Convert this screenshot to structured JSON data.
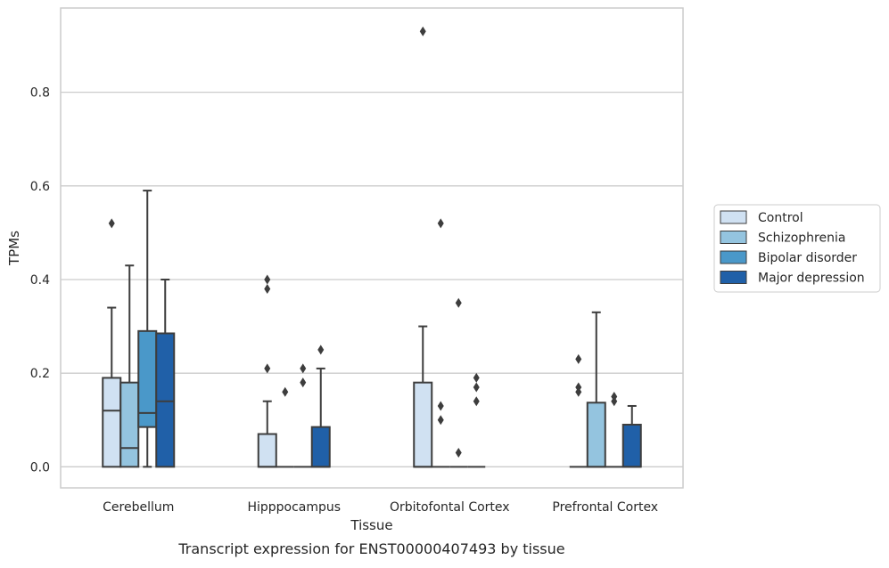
{
  "caption": "Transcript expression for ENST00000407493 by tissue",
  "chart_data": {
    "type": "box",
    "xlabel": "Tissue",
    "ylabel": "TPMs",
    "ylim": [
      -0.045,
      0.98
    ],
    "yticks": [
      0.0,
      0.2,
      0.4,
      0.6,
      0.8
    ],
    "ytick_labels": [
      "0.0",
      "0.2",
      "0.4",
      "0.6",
      "0.8"
    ],
    "grid": "horizontal",
    "legend_position": "right",
    "categories": [
      "Cerebellum",
      "Hipppocampus",
      "Orbitofontal Cortex",
      "Prefrontal Cortex"
    ],
    "groups": [
      {
        "name": "Control",
        "color": "#d0e1f2"
      },
      {
        "name": "Schizophrenia",
        "color": "#94c4df"
      },
      {
        "name": "Bipolar disorder",
        "color": "#4a98c9"
      },
      {
        "name": "Major depression",
        "color": "#2060a8"
      }
    ],
    "boxes": [
      [
        {
          "q1": 0.0,
          "median": 0.12,
          "q3": 0.19,
          "whisker_low": 0.0,
          "whisker_high": 0.34,
          "outliers": [
            0.52
          ]
        },
        {
          "q1": 0.0,
          "median": 0.04,
          "q3": 0.18,
          "whisker_low": 0.0,
          "whisker_high": 0.43,
          "outliers": []
        },
        {
          "q1": 0.085,
          "median": 0.115,
          "q3": 0.29,
          "whisker_low": 0.0,
          "whisker_high": 0.59,
          "outliers": []
        },
        {
          "q1": 0.0,
          "median": 0.14,
          "q3": 0.285,
          "whisker_low": 0.0,
          "whisker_high": 0.4,
          "outliers": []
        }
      ],
      [
        {
          "q1": 0.0,
          "median": 0.0,
          "q3": 0.07,
          "whisker_low": 0.0,
          "whisker_high": 0.14,
          "outliers": [
            0.21,
            0.38,
            0.4
          ]
        },
        {
          "q1": 0.0,
          "median": 0.0,
          "q3": 0.0,
          "whisker_low": 0.0,
          "whisker_high": 0.0,
          "outliers": [
            0.16
          ]
        },
        {
          "q1": 0.0,
          "median": 0.0,
          "q3": 0.0,
          "whisker_low": 0.0,
          "whisker_high": 0.0,
          "outliers": [
            0.18,
            0.21
          ]
        },
        {
          "q1": 0.0,
          "median": 0.0,
          "q3": 0.085,
          "whisker_low": 0.0,
          "whisker_high": 0.21,
          "outliers": [
            0.25
          ]
        }
      ],
      [
        {
          "q1": 0.0,
          "median": 0.0,
          "q3": 0.18,
          "whisker_low": 0.0,
          "whisker_high": 0.3,
          "outliers": [
            0.93
          ]
        },
        {
          "q1": 0.0,
          "median": 0.0,
          "q3": 0.0,
          "whisker_low": 0.0,
          "whisker_high": 0.0,
          "outliers": [
            0.1,
            0.13,
            0.52
          ]
        },
        {
          "q1": 0.0,
          "median": 0.0,
          "q3": 0.0,
          "whisker_low": 0.0,
          "whisker_high": 0.0,
          "outliers": [
            0.03,
            0.35
          ]
        },
        {
          "q1": 0.0,
          "median": 0.0,
          "q3": 0.0,
          "whisker_low": 0.0,
          "whisker_high": 0.0,
          "outliers": [
            0.14,
            0.17,
            0.19
          ]
        }
      ],
      [
        {
          "q1": 0.0,
          "median": 0.0,
          "q3": 0.0,
          "whisker_low": 0.0,
          "whisker_high": 0.0,
          "outliers": [
            0.16,
            0.17,
            0.23
          ]
        },
        {
          "q1": 0.0,
          "median": 0.0,
          "q3": 0.137,
          "whisker_low": 0.0,
          "whisker_high": 0.33,
          "outliers": []
        },
        {
          "q1": 0.0,
          "median": 0.0,
          "q3": 0.0,
          "whisker_low": 0.0,
          "whisker_high": 0.0,
          "outliers": [
            0.14,
            0.15
          ]
        },
        {
          "q1": 0.0,
          "median": 0.0,
          "q3": 0.09,
          "whisker_low": 0.0,
          "whisker_high": 0.13,
          "outliers": []
        }
      ]
    ]
  }
}
